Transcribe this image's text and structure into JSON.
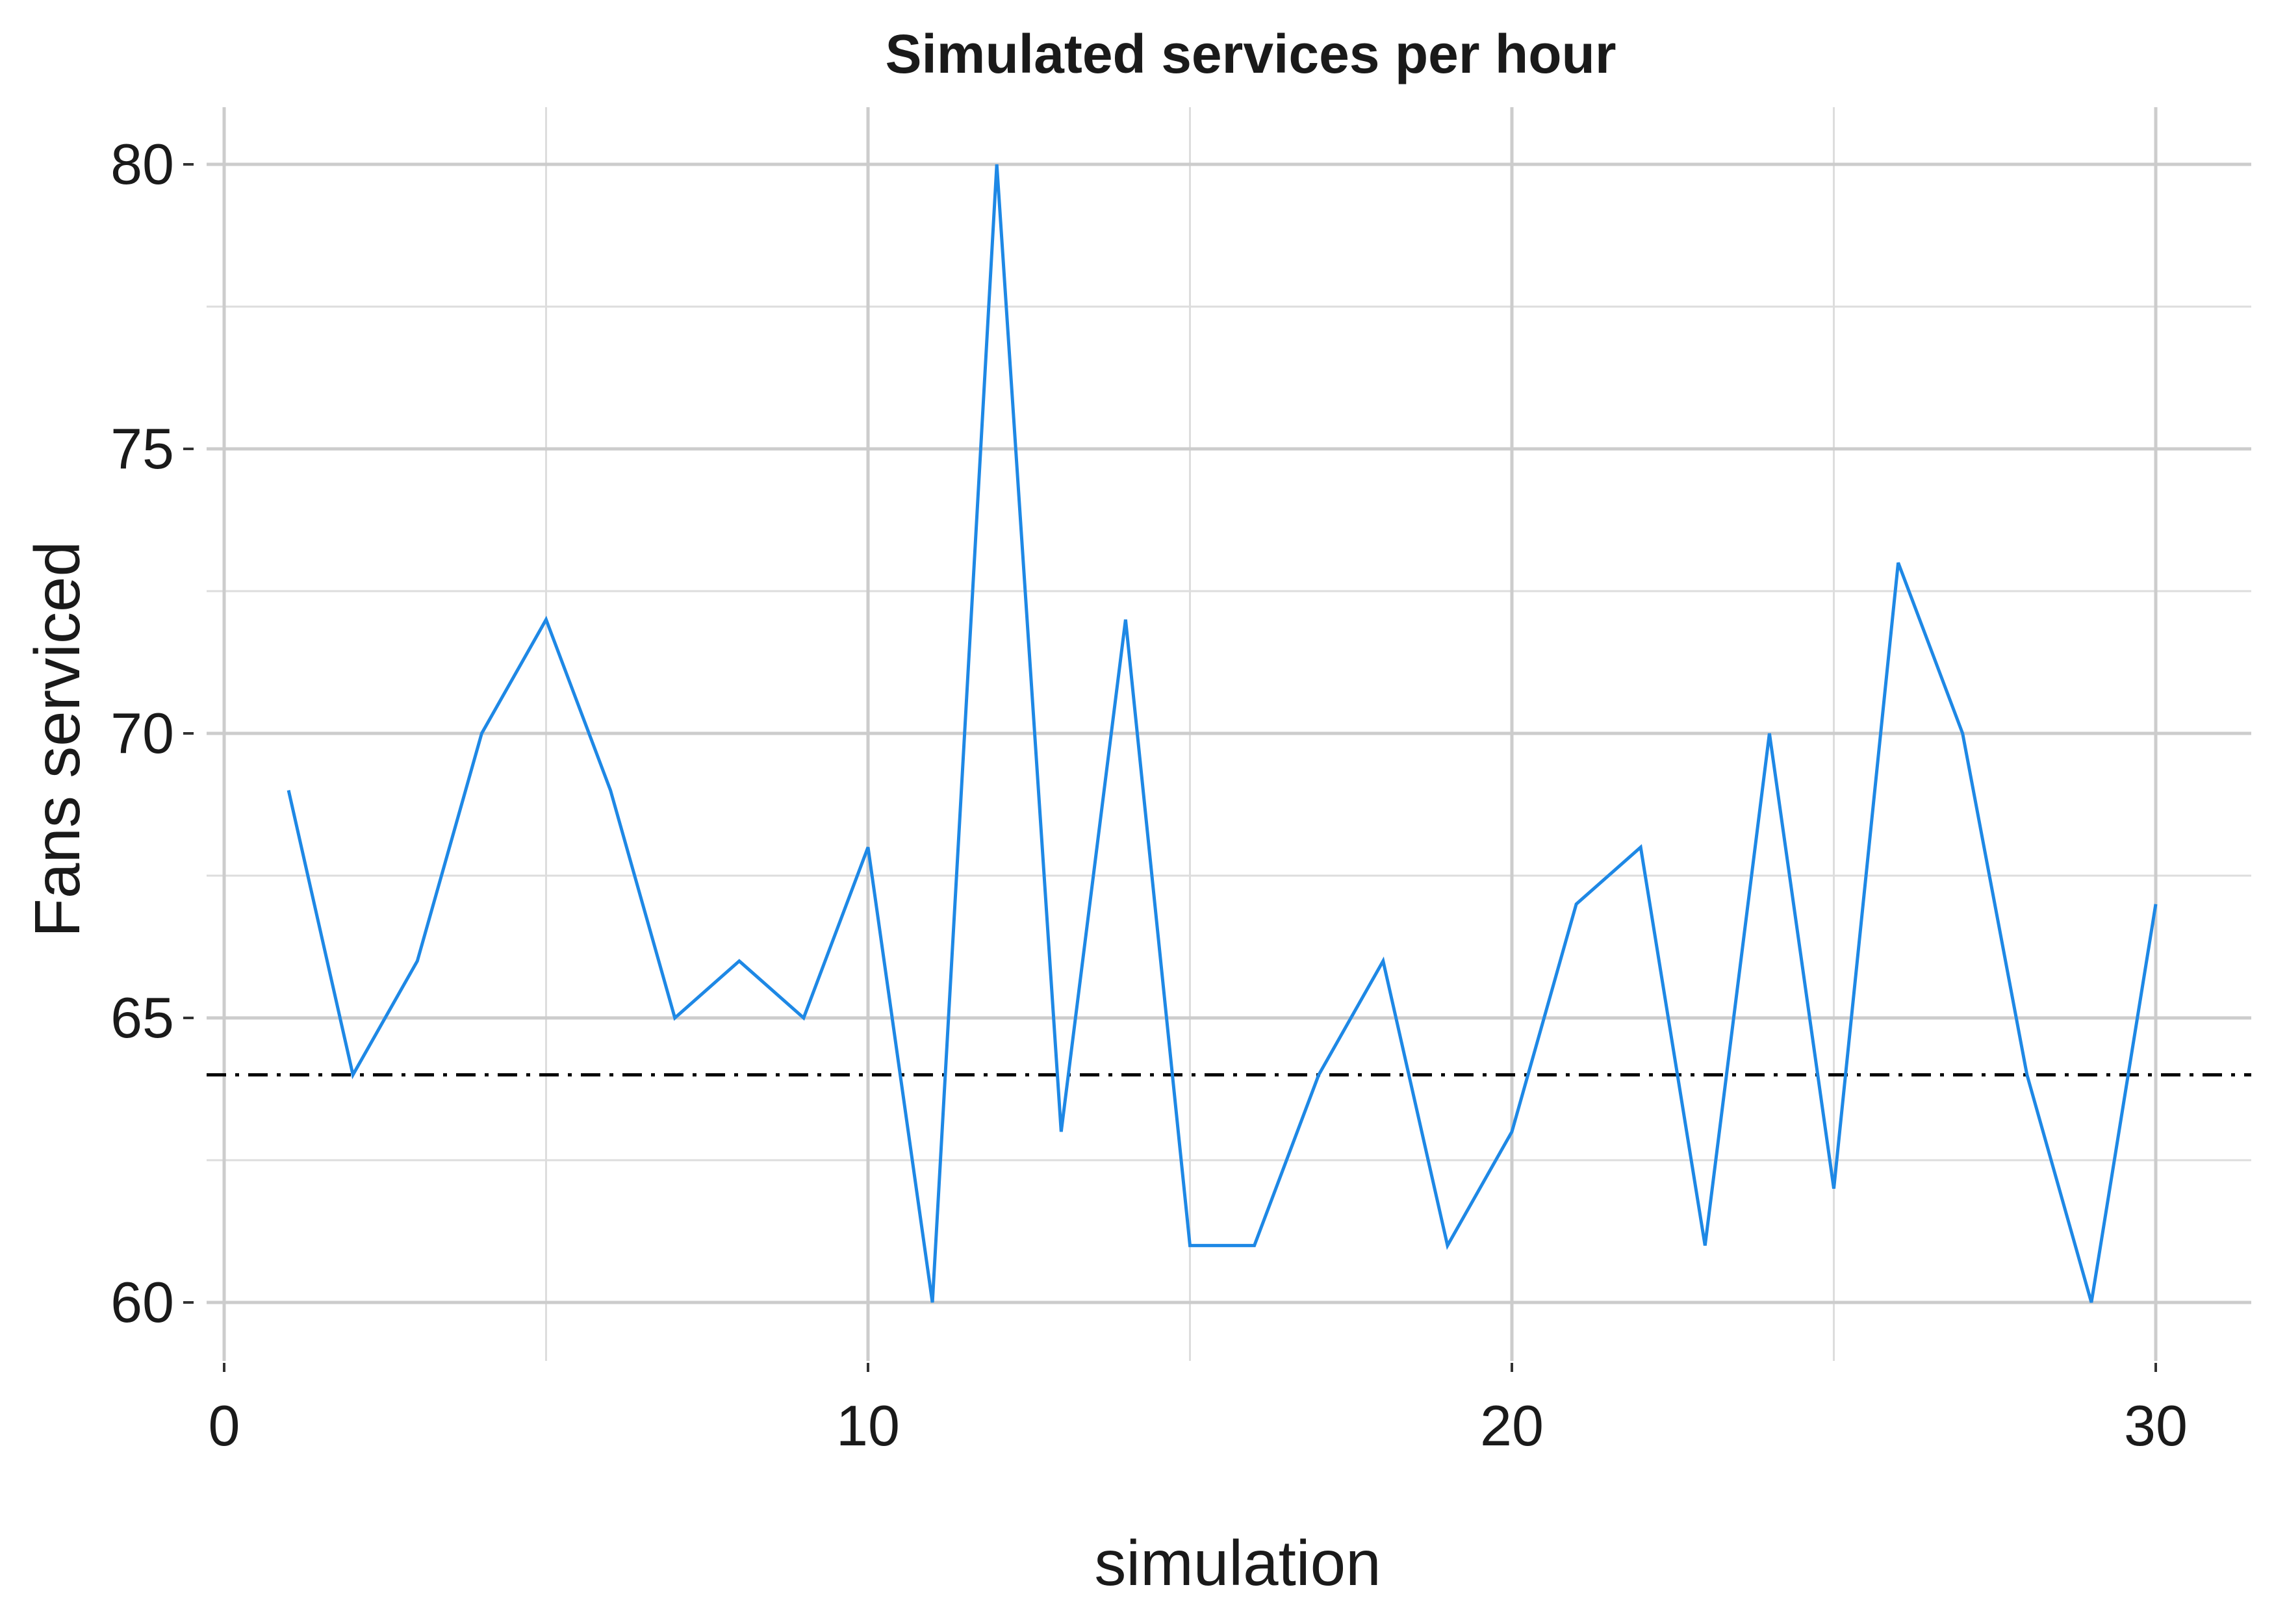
{
  "chart_data": {
    "type": "line",
    "title": "Simulated services per hour",
    "xlabel": "simulation",
    "ylabel": "Fans serviced",
    "xlim": [
      0,
      30
    ],
    "ylim": [
      60,
      80
    ],
    "xticks": [
      0,
      10,
      20,
      30
    ],
    "yticks": [
      60,
      65,
      70,
      75,
      80
    ],
    "grid": true,
    "series": [
      {
        "x": [
          1,
          2,
          3,
          4,
          5,
          6,
          7,
          8,
          9,
          10,
          11,
          12,
          13,
          14,
          15,
          16,
          17,
          18,
          19,
          20,
          21,
          22,
          23,
          24,
          25,
          26,
          27,
          28,
          29,
          30
        ],
        "values": [
          69,
          64,
          66,
          70,
          72,
          69,
          65,
          66,
          65,
          68,
          60,
          80,
          63,
          72,
          61,
          61,
          64,
          66,
          61,
          63,
          67,
          68,
          61,
          70,
          62,
          73,
          70,
          64,
          60,
          67
        ],
        "color": "#1e88e5"
      }
    ],
    "reference_line": {
      "y": 64,
      "style": "dash-dot",
      "color": "#000000"
    }
  }
}
